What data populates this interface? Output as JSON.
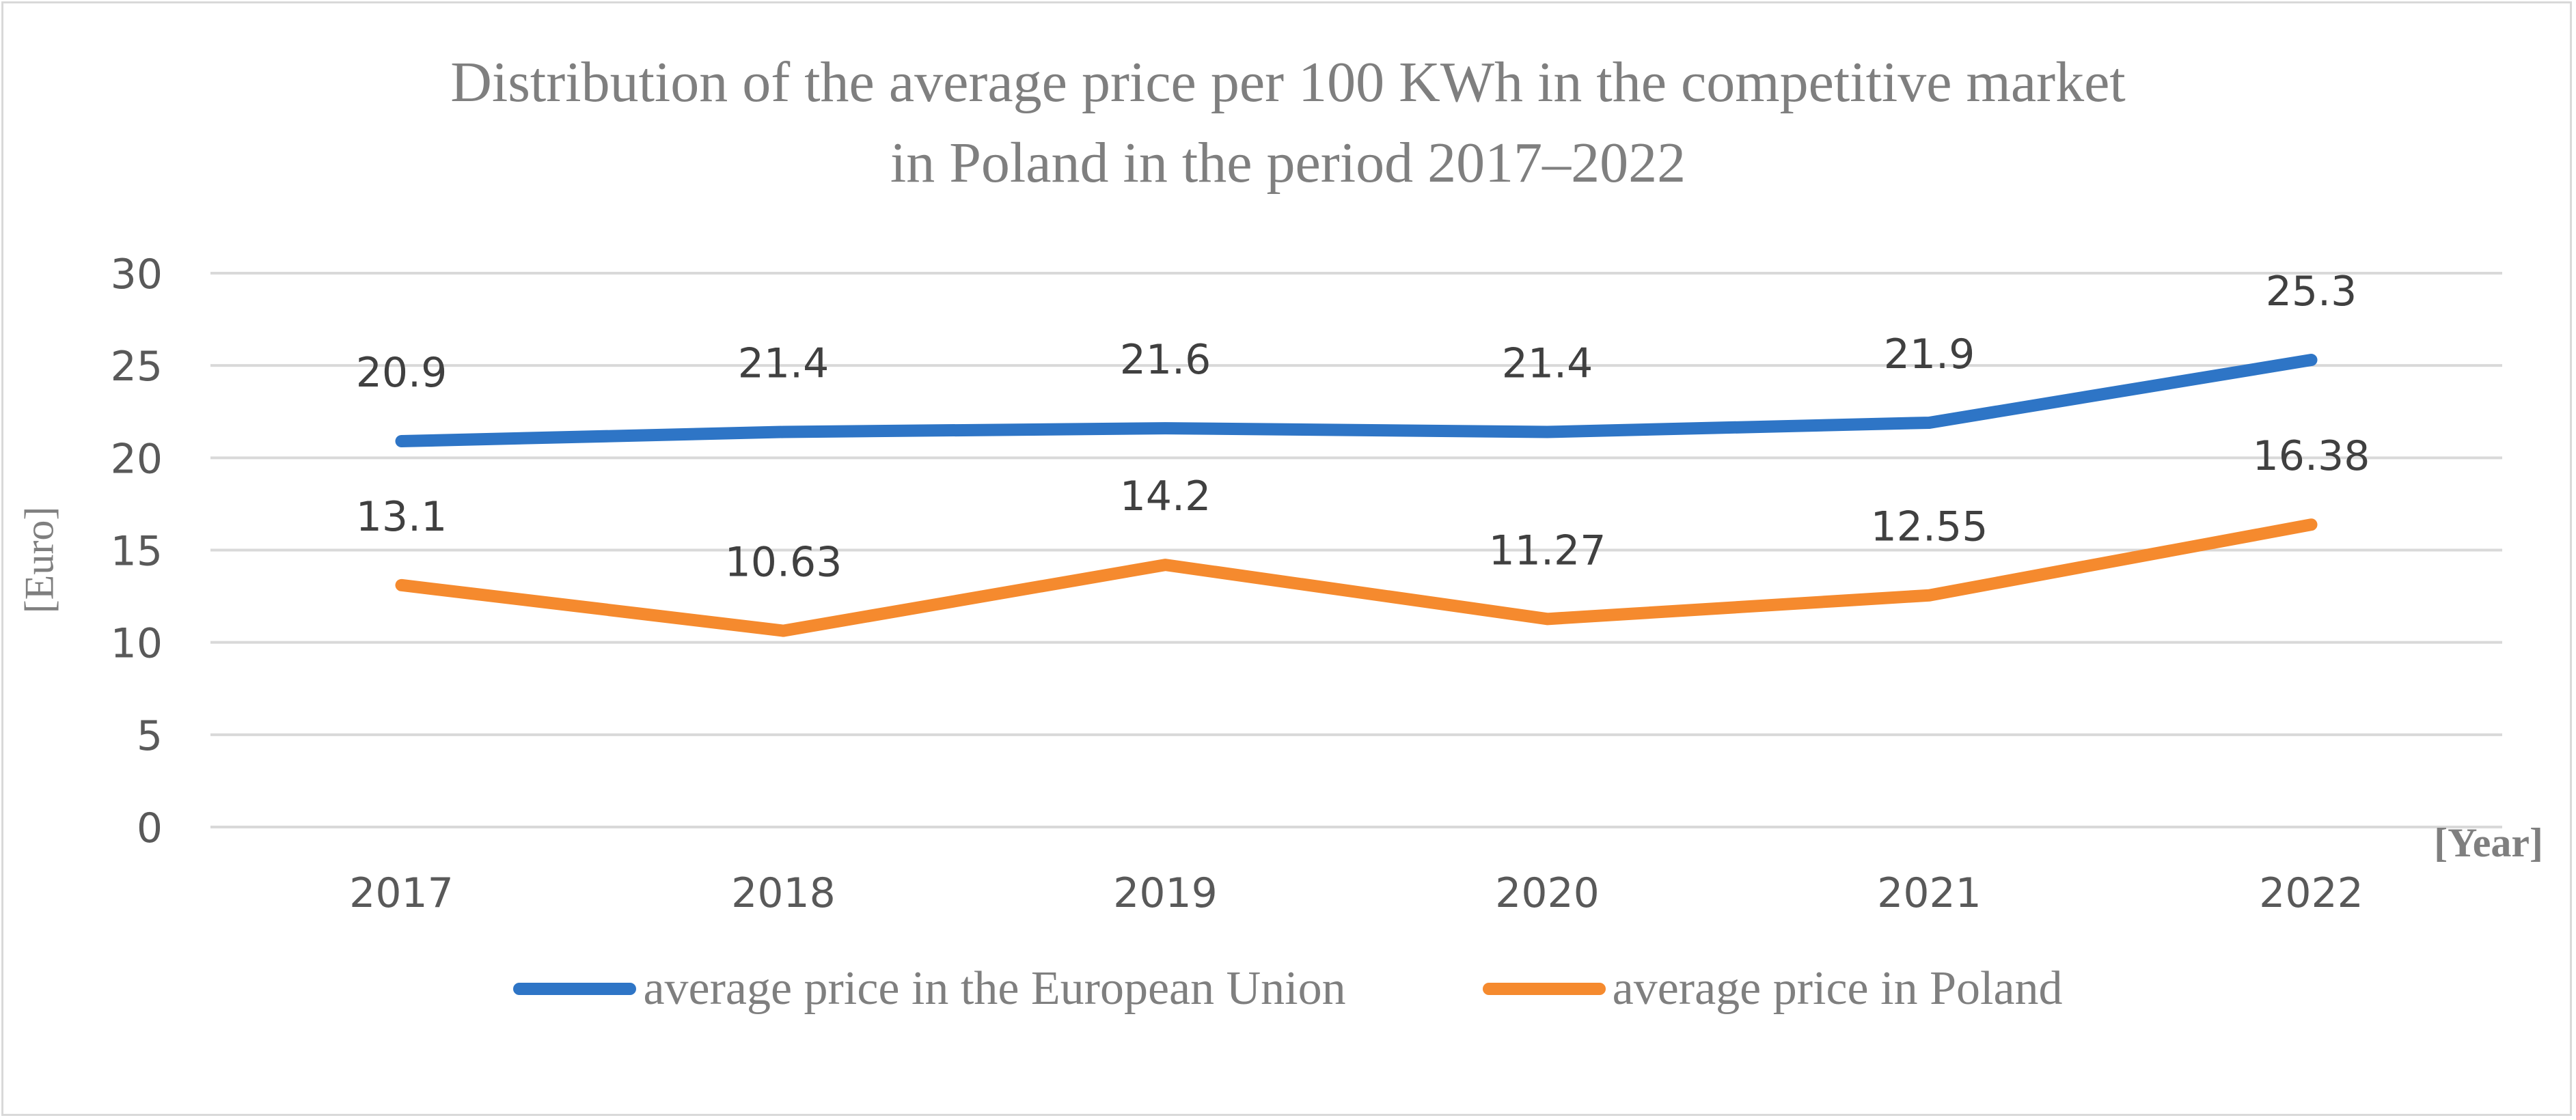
{
  "chart_data": {
    "type": "line",
    "title_lines": [
      "Distribution of the average price per 100 KWh in the competitive market",
      "in Poland in the period 2017–2022"
    ],
    "xlabel": "[Year]",
    "ylabel": "[Euro]",
    "categories": [
      "2017",
      "2018",
      "2019",
      "2020",
      "2021",
      "2022"
    ],
    "ylim": [
      0,
      30
    ],
    "yticks": [
      0,
      5,
      10,
      15,
      20,
      25,
      30
    ],
    "grid": true,
    "legend_position": "bottom",
    "series": [
      {
        "name": "average price in the European Union",
        "color": "#2e75c6",
        "values": [
          20.9,
          21.4,
          21.6,
          21.4,
          21.9,
          25.3
        ],
        "labels": [
          "20.9",
          "21.4",
          "21.6",
          "21.4",
          "21.9",
          "25.3"
        ]
      },
      {
        "name": "average price in Poland",
        "color": "#f58a2e",
        "values": [
          13.1,
          10.63,
          14.2,
          11.27,
          12.55,
          16.38
        ],
        "labels": [
          "13.1",
          "10.63",
          "14.2",
          "11.27",
          "12.55",
          "16.38"
        ]
      }
    ]
  }
}
